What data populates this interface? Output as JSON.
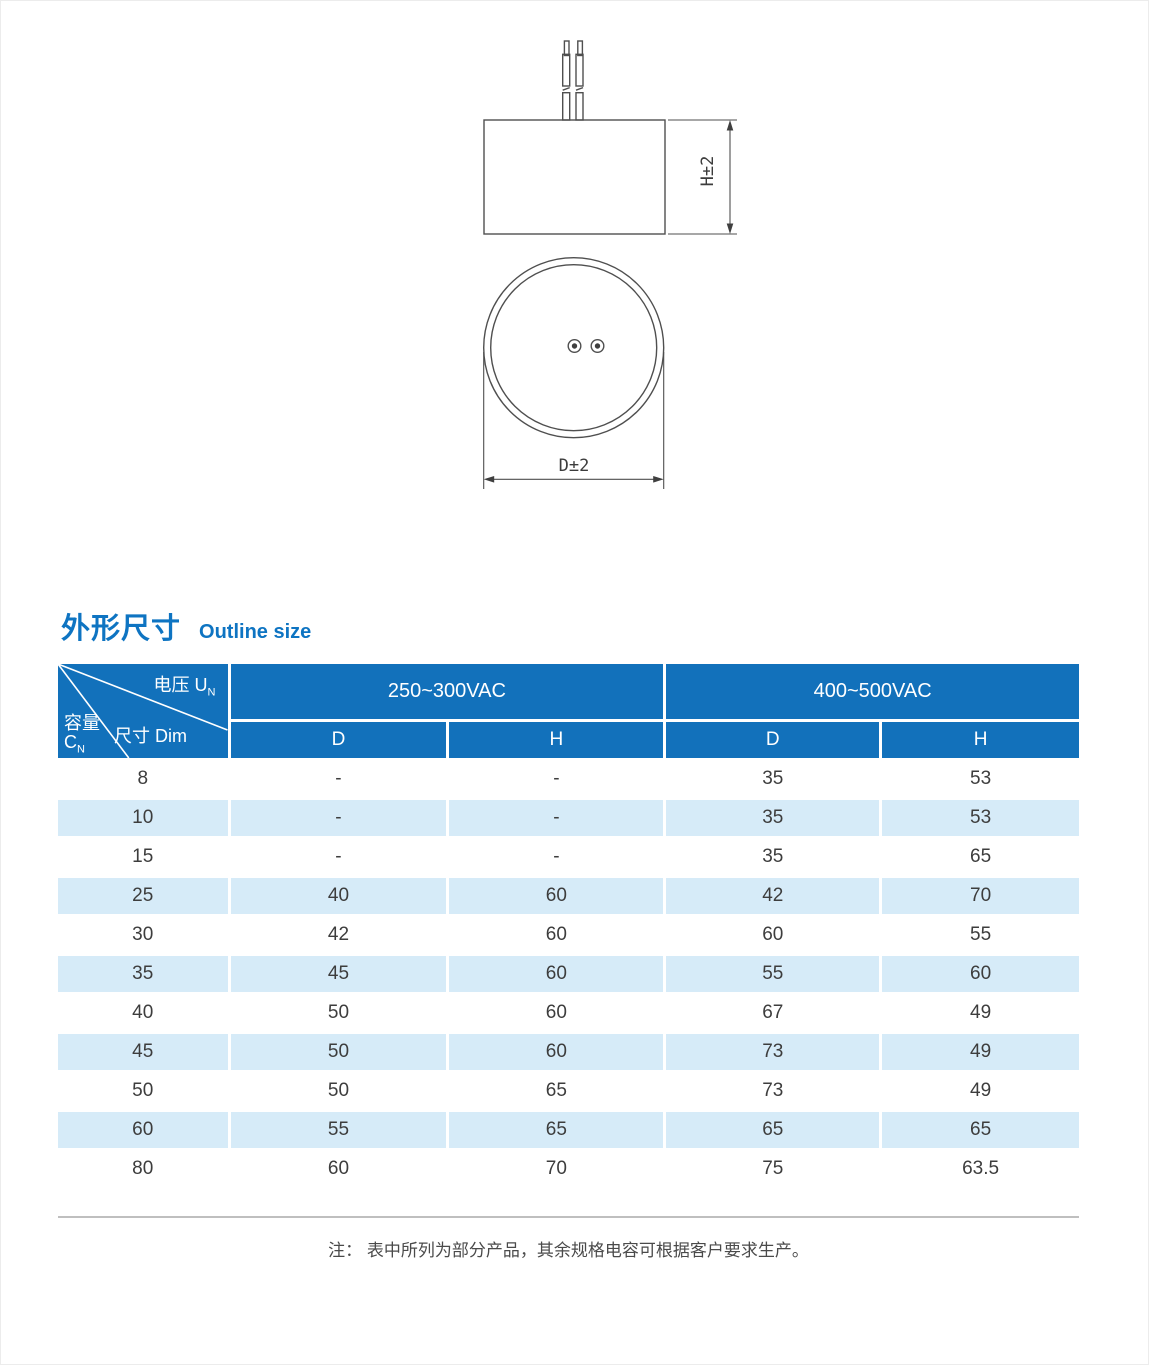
{
  "page": {
    "section_title_zh": "外形尺寸",
    "section_title_en": "Outline size",
    "note": "注：  表中所列为部分产品，其余规格电容可根据客户要求生产。"
  },
  "diagram": {
    "height_dim_label": "H±2",
    "diameter_dim_label": "D±2"
  },
  "table": {
    "corner": {
      "voltage_label": "电压 U",
      "voltage_subscript": "N",
      "size_label": "尺寸 Dim",
      "capacity_label": "容量",
      "capacity_symbol": "C",
      "capacity_subscript": "N"
    },
    "voltage_groups": [
      "250~300VAC",
      "400~500VAC"
    ],
    "sub_headers": [
      "D",
      "H",
      "D",
      "H"
    ],
    "rows": [
      [
        "8",
        "-",
        "-",
        "35",
        "53"
      ],
      [
        "10",
        "-",
        "-",
        "35",
        "53"
      ],
      [
        "15",
        "-",
        "-",
        "35",
        "65"
      ],
      [
        "25",
        "40",
        "60",
        "42",
        "70"
      ],
      [
        "30",
        "42",
        "60",
        "60",
        "55"
      ],
      [
        "35",
        "45",
        "60",
        "55",
        "60"
      ],
      [
        "40",
        "50",
        "60",
        "67",
        "49"
      ],
      [
        "45",
        "50",
        "60",
        "73",
        "49"
      ],
      [
        "50",
        "50",
        "65",
        "73",
        "49"
      ],
      [
        "60",
        "55",
        "65",
        "65",
        "65"
      ],
      [
        "80",
        "60",
        "70",
        "75",
        "63.5"
      ]
    ]
  },
  "colors": {
    "header_blue": "#1271bb",
    "row_alt_blue": "#d6ebf8",
    "title_blue": "#0e74c2",
    "drawing_line": "#4f4f4f"
  }
}
